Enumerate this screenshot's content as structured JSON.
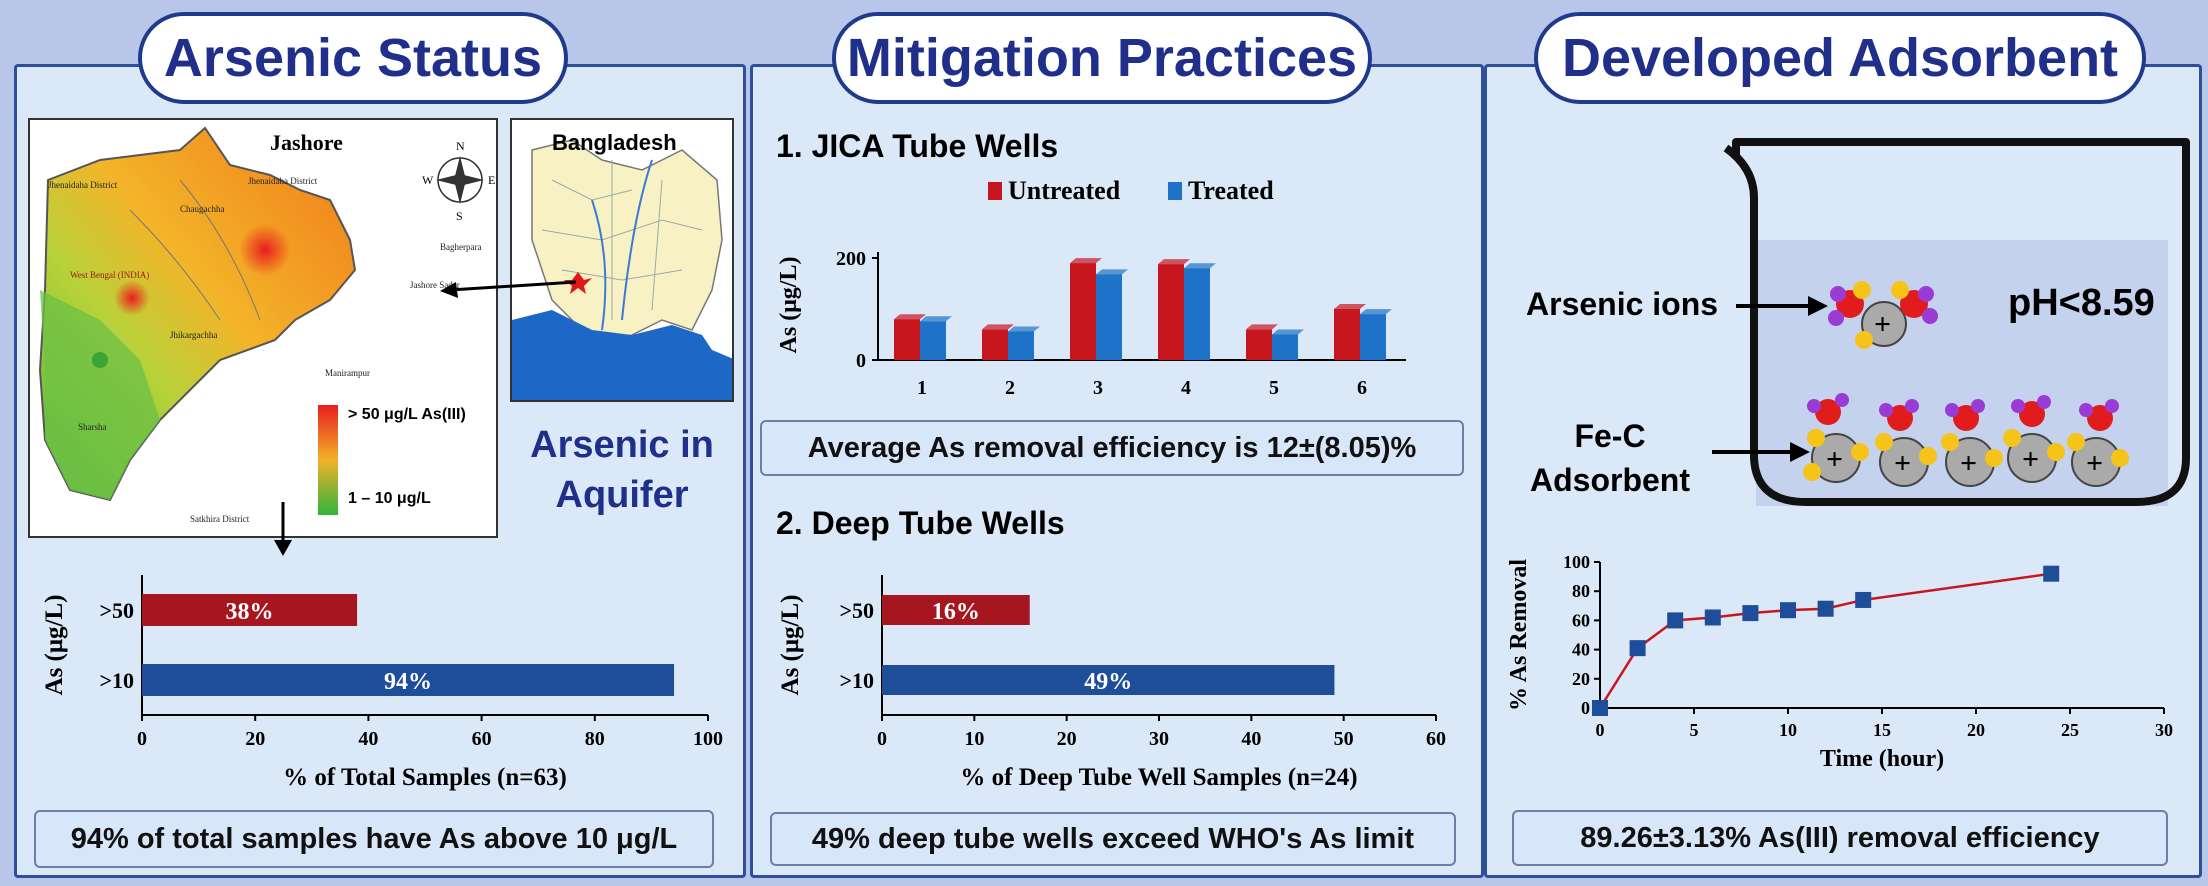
{
  "panels": {
    "left": {
      "title": "Arsenic Status",
      "map": {
        "title": "Jashore",
        "compass": {
          "n": "N",
          "s": "S",
          "e": "E",
          "w": "W"
        },
        "labels": [
          "Jhenaidaha District",
          "Jhenaidaha District",
          "Chaugachha",
          "Bagherpara",
          "West Bengal (INDIA)",
          "Jashore Sadar",
          "Jhikargachha",
          "Manirampur",
          "Sharsha",
          "Satkhira District"
        ],
        "legend_high": "> 50 μg/L As(III)",
        "legend_low": "1 – 10 μg/L"
      },
      "inset_title": "Bangladesh",
      "aquifer_line1": "Arsenic in",
      "aquifer_line2": "Aquifer",
      "caption": "94% of total samples have As above 10 μg/L"
    },
    "middle": {
      "title": "Mitigation Practices",
      "section1": "1. JICA Tube Wells",
      "section2": "2. Deep Tube Wells",
      "caption1": "Average As removal efficiency is 12±(8.05)%",
      "caption2": "49% deep tube wells exceed WHO's As limit"
    },
    "right": {
      "title": "Developed Adsorbent",
      "arsenic_label": "Arsenic ions",
      "ph_label": "pH<8.59",
      "adsorbent_line1": "Fe-C",
      "adsorbent_line2": "Adsorbent",
      "caption": "89.26±3.13% As(III) removal efficiency"
    }
  },
  "chart_data": [
    {
      "type": "bar",
      "orientation": "horizontal",
      "categories": [
        ">50",
        ">10"
      ],
      "values": [
        38,
        94
      ],
      "value_labels": [
        "38%",
        "94%"
      ],
      "xlabel": "% of Total Samples (n=63)",
      "ylabel": "As (μg/L)",
      "xlim": [
        0,
        100
      ],
      "xticks": [
        0,
        20,
        40,
        60,
        80,
        100
      ],
      "colors": [
        "#a5161e",
        "#1e4e9a"
      ]
    },
    {
      "type": "bar",
      "categories": [
        "1",
        "2",
        "3",
        "4",
        "5",
        "6"
      ],
      "series": [
        {
          "name": "Untreated",
          "values": [
            80,
            60,
            190,
            188,
            60,
            100
          ],
          "color": "#c8161f"
        },
        {
          "name": "Treated",
          "values": [
            76,
            56,
            168,
            180,
            50,
            90
          ],
          "color": "#1e73c8"
        }
      ],
      "ylabel": "As (μg/L)",
      "ylim": [
        0,
        200
      ],
      "yticks": [
        0,
        200
      ],
      "legend": "top"
    },
    {
      "type": "bar",
      "orientation": "horizontal",
      "categories": [
        ">50",
        ">10"
      ],
      "values": [
        16,
        49
      ],
      "value_labels": [
        "16%",
        "49%"
      ],
      "xlabel": "% of Deep Tube Well Samples (n=24)",
      "ylabel": "As (μg/L)",
      "xlim": [
        0,
        60
      ],
      "xticks": [
        0,
        10,
        20,
        30,
        40,
        50,
        60
      ],
      "colors": [
        "#a5161e",
        "#1e4e9a"
      ]
    },
    {
      "type": "line",
      "x": [
        0,
        2,
        4,
        6,
        8,
        10,
        12,
        14,
        24
      ],
      "y": [
        0,
        41,
        60,
        62,
        65,
        67,
        68,
        74,
        92
      ],
      "xlabel": "Time (hour)",
      "ylabel": "% As Removal",
      "xlim": [
        0,
        30
      ],
      "ylim": [
        0,
        100
      ],
      "xticks": [
        0,
        5,
        10,
        15,
        20,
        25,
        30
      ],
      "yticks": [
        0,
        20,
        40,
        60,
        80,
        100
      ],
      "color": "#c8161f",
      "marker_color": "#1e4e9a"
    }
  ]
}
